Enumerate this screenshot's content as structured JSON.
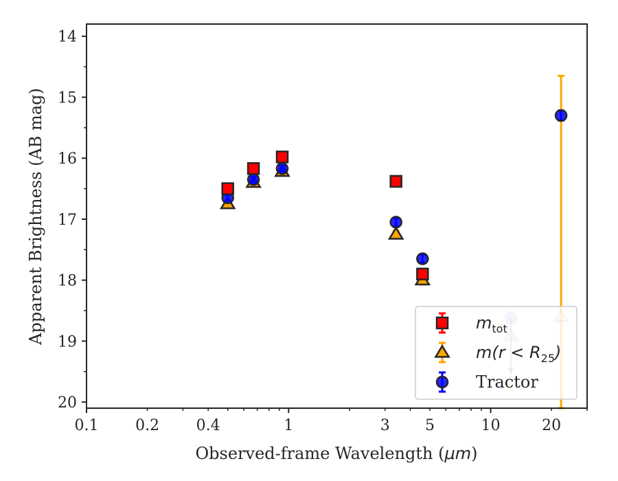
{
  "chart_data": {
    "type": "scatter",
    "xlabel_prefix": "Observed-frame Wavelength (",
    "xlabel_unit": "μm",
    "xlabel_suffix": ")",
    "ylabel": "Apparent Brightness (AB mag)",
    "xscale": "log",
    "xlim": [
      0.1,
      30
    ],
    "ylim": [
      20.1,
      13.8
    ],
    "y_inverted": true,
    "grid": false,
    "legend_position": "lower-right",
    "x_ticks": [
      0.1,
      0.2,
      0.4,
      1,
      3,
      5,
      10,
      20
    ],
    "x_tick_labels": [
      "0.1",
      "0.2",
      "0.4",
      "1",
      "3",
      "5",
      "10",
      "20"
    ],
    "y_ticks": [
      14,
      15,
      16,
      17,
      18,
      19,
      20
    ],
    "y_tick_labels": [
      "14",
      "15",
      "16",
      "17",
      "18",
      "19",
      "20"
    ],
    "series": [
      {
        "key": "m_tot",
        "legend_base": "m",
        "legend_sub": "tot",
        "marker": "square",
        "face_color": "#ff0000",
        "edge_color": "#262626",
        "err_color": "#ff0000",
        "points": [
          {
            "x": 0.5,
            "y": 16.5,
            "err": 0.05
          },
          {
            "x": 0.67,
            "y": 16.17,
            "err": 0.05
          },
          {
            "x": 0.93,
            "y": 15.98,
            "err": 0.05
          },
          {
            "x": 3.4,
            "y": 16.38,
            "err": 0.06
          },
          {
            "x": 4.6,
            "y": 17.9,
            "err": 0.07
          }
        ]
      },
      {
        "key": "m_r25",
        "legend_base": "m(r < R",
        "legend_sub": "25",
        "legend_end": ")",
        "marker": "triangle",
        "face_color": "#ffa500",
        "edge_color": "#262626",
        "err_color": "#ffa500",
        "points": [
          {
            "x": 0.5,
            "y": 16.75,
            "err": 0.05
          },
          {
            "x": 0.67,
            "y": 16.4,
            "err": 0.05
          },
          {
            "x": 0.93,
            "y": 16.22,
            "err": 0.05
          },
          {
            "x": 3.4,
            "y": 17.25,
            "err": 0.06
          },
          {
            "x": 4.6,
            "y": 18.0,
            "err": 0.07
          },
          {
            "x": 12.6,
            "y": 18.92,
            "err": 0.0,
            "upper_limit": true
          },
          {
            "x": 22.3,
            "y": 18.6,
            "err_low": 3.95,
            "err_high": 3.95
          }
        ]
      },
      {
        "key": "tractor",
        "legend_base": "Tractor",
        "marker": "circle",
        "face_color": "#0000ff",
        "edge_color": "#262626",
        "err_color": "#0000ff",
        "points": [
          {
            "x": 0.5,
            "y": 16.65,
            "err": 0.05
          },
          {
            "x": 0.67,
            "y": 16.35,
            "err": 0.05
          },
          {
            "x": 0.93,
            "y": 16.17,
            "err": 0.05
          },
          {
            "x": 3.4,
            "y": 17.05,
            "err": 0.07
          },
          {
            "x": 4.6,
            "y": 17.65,
            "err": 0.07
          },
          {
            "x": 12.6,
            "y": 18.62,
            "err": 0.0,
            "upper_limit": true
          },
          {
            "x": 22.3,
            "y": 15.3,
            "err": 0.08
          }
        ]
      }
    ]
  }
}
